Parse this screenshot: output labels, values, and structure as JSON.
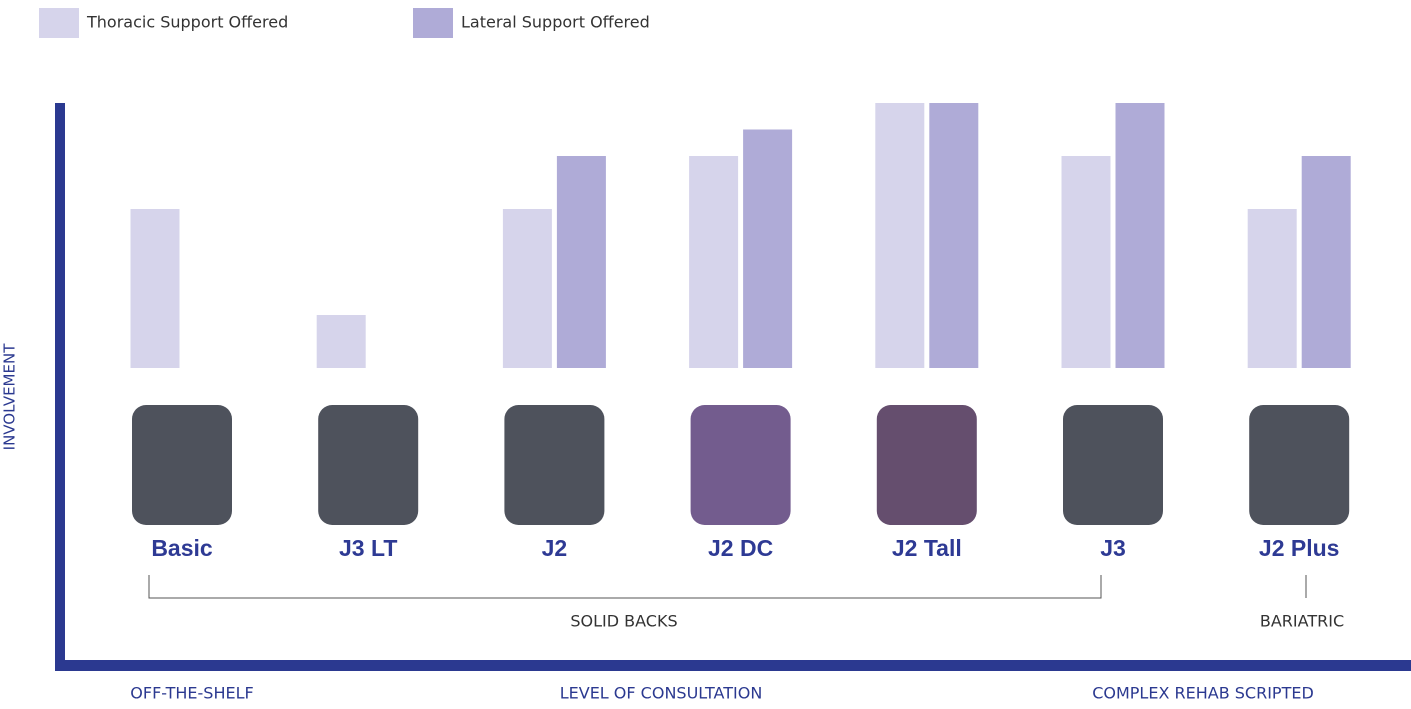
{
  "chart_data": {
    "type": "bar",
    "x_label": "LEVEL OF CONSULTATION",
    "y_label": "INVOLVEMENT",
    "categories": [
      "Basic",
      "J3 LT",
      "J2",
      "J2 DC",
      "J2 Tall",
      "J3",
      "J2 Plus"
    ],
    "series": [
      {
        "name": "Thoracic Support Offered",
        "color": "#d6d4eb",
        "values": [
          3,
          1,
          3,
          4,
          5,
          4,
          3
        ]
      },
      {
        "name": "Lateral Support Offered",
        "color": "#afabd7",
        "values": [
          null,
          null,
          4,
          4.5,
          5,
          5,
          4
        ]
      }
    ],
    "ylim": [
      0,
      5
    ],
    "annotations": {
      "solid_backs": "SOLID BACKS",
      "bariatric": "BARIATRIC",
      "low_end": "OFF-THE-SHELF",
      "high_end": "COMPLEX REHAB SCRIPTED"
    }
  }
}
